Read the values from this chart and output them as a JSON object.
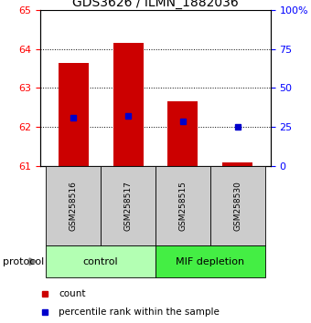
{
  "title": "GDS3626 / ILMN_1882036",
  "samples": [
    "GSM258516",
    "GSM258517",
    "GSM258515",
    "GSM258530"
  ],
  "bar_bottoms": [
    61.0,
    61.0,
    61.0,
    61.0
  ],
  "bar_tops": [
    63.65,
    64.15,
    62.65,
    61.1
  ],
  "percentile_values": [
    62.25,
    62.3,
    62.15,
    62.0
  ],
  "bar_color": "#cc0000",
  "percentile_color": "#0000cc",
  "ylim_left": [
    61,
    65
  ],
  "ylim_right": [
    0,
    100
  ],
  "yticks_left": [
    61,
    62,
    63,
    64,
    65
  ],
  "yticks_right": [
    0,
    25,
    50,
    75,
    100
  ],
  "ytick_labels_right": [
    "0",
    "25",
    "50",
    "75",
    "100%"
  ],
  "groups": [
    {
      "label": "control",
      "indices": [
        0,
        1
      ],
      "color": "#b3ffb3"
    },
    {
      "label": "MIF depletion",
      "indices": [
        2,
        3
      ],
      "color": "#44ee44"
    }
  ],
  "protocol_label": "protocol",
  "legend_count_label": "count",
  "legend_pct_label": "percentile rank within the sample",
  "sample_box_color": "#cccccc",
  "title_fontsize": 10,
  "bar_width": 0.55
}
